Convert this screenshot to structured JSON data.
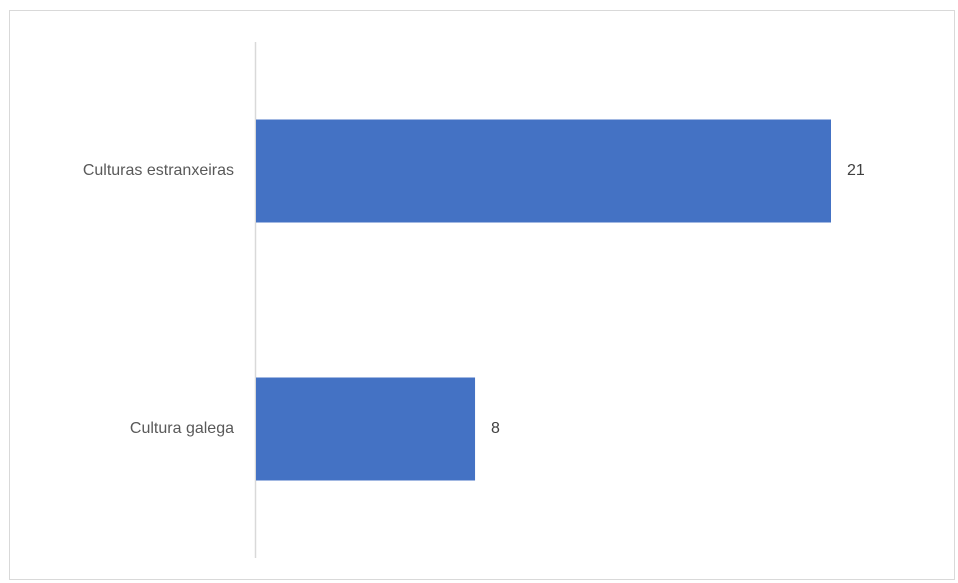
{
  "chart_data": {
    "type": "bar",
    "orientation": "horizontal",
    "categories": [
      "Culturas estranxeiras",
      "Cultura galega"
    ],
    "values": [
      21,
      8
    ],
    "data_labels": [
      "21",
      "8"
    ],
    "title": "",
    "xlabel": "",
    "ylabel": "",
    "xlim": [
      0,
      22
    ],
    "grid": false,
    "legend": "none",
    "bar_color": "#4472C4",
    "axis_color": "#d9d9d9",
    "label_color": "#595959"
  }
}
